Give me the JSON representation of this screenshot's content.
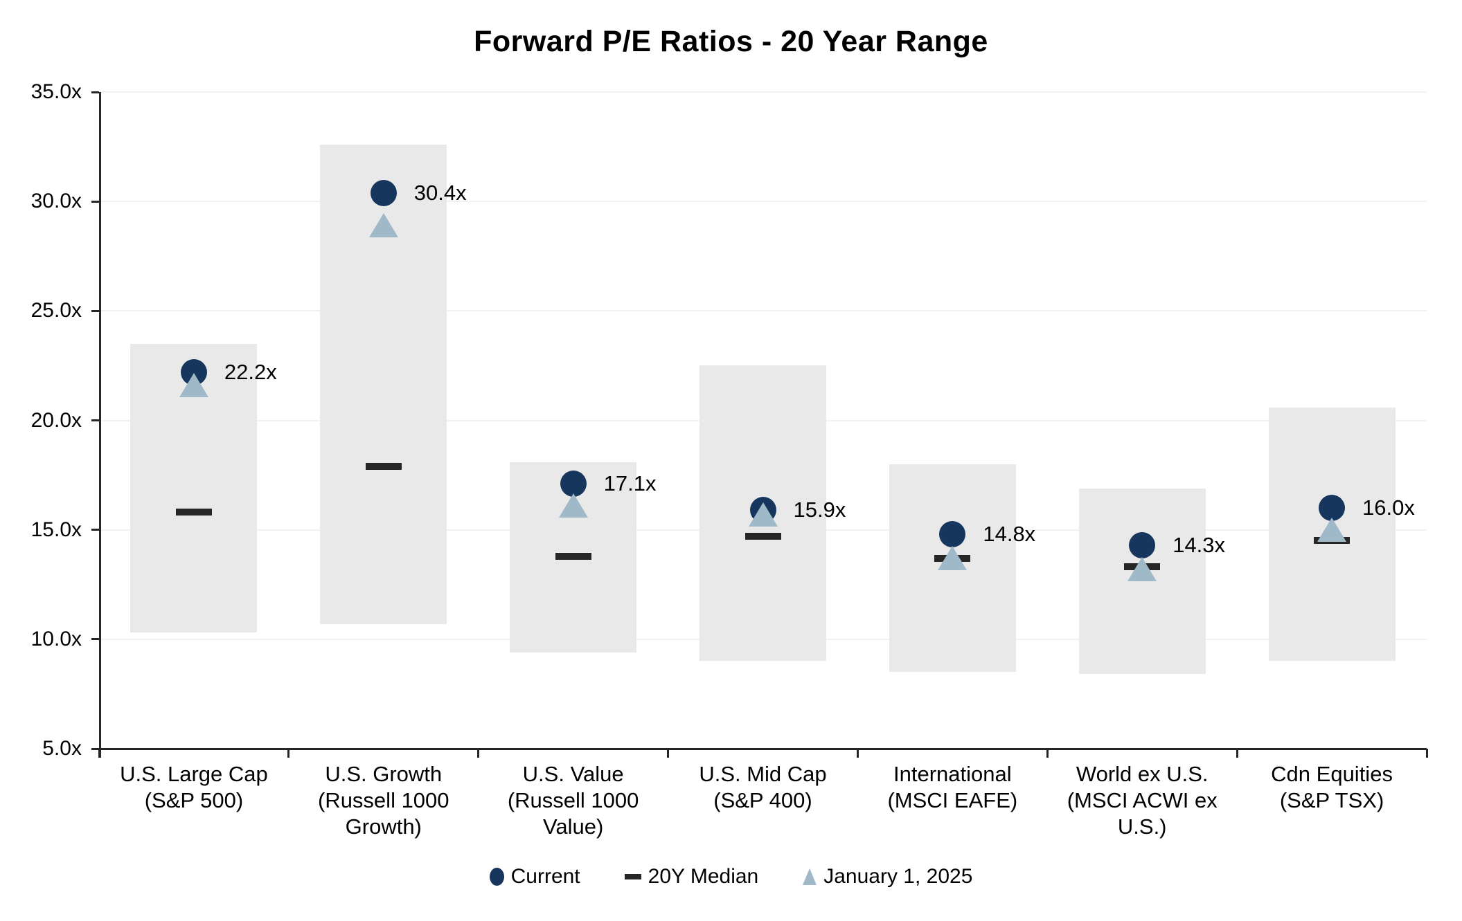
{
  "title": "Forward P/E Ratios - 20 Year Range",
  "colors": {
    "current": "#16365D",
    "jan1": "#9FB9C8",
    "median": "#262626",
    "range_bar": "#E9E9E9",
    "gridline": "#F2F2F2",
    "axis": "#262626",
    "text": "#000000",
    "background": "#FFFFFF"
  },
  "legend": [
    {
      "label": "Current",
      "marker": "circle"
    },
    {
      "label": "20Y Median",
      "marker": "dash"
    },
    {
      "label": "January 1, 2025",
      "marker": "triangle"
    }
  ],
  "chart_data": {
    "type": "bar",
    "subtype": "floating-range-bars-with-point-markers",
    "title": "Forward P/E Ratios - 20 Year Range",
    "xlabel": "",
    "ylabel": "",
    "ylim": [
      5.0,
      35.0
    ],
    "ytick_step": 5.0,
    "yticks": [
      35,
      30,
      25,
      20,
      15,
      10,
      5
    ],
    "ytick_labels": [
      "35.0x",
      "30.0x",
      "25.0x",
      "20.0x",
      "15.0x",
      "10.0x",
      "5.0x"
    ],
    "grid": true,
    "legend_position": "bottom",
    "series_names": [
      "20Y Range",
      "Current",
      "20Y Median",
      "January 1, 2025"
    ],
    "categories": [
      {
        "label_lines": [
          "U.S. Large Cap",
          "(S&P 500)"
        ],
        "range_low": 10.3,
        "range_high": 23.5,
        "median": 15.8,
        "current": 22.2,
        "jan1_2025": 21.6,
        "current_label": "22.2x"
      },
      {
        "label_lines": [
          "U.S. Growth",
          "(Russell 1000",
          "Growth)"
        ],
        "range_low": 10.7,
        "range_high": 32.6,
        "median": 17.9,
        "current": 30.4,
        "jan1_2025": 28.9,
        "current_label": "30.4x"
      },
      {
        "label_lines": [
          "U.S. Value",
          "(Russell 1000",
          "Value)"
        ],
        "range_low": 9.4,
        "range_high": 18.1,
        "median": 13.8,
        "current": 17.1,
        "jan1_2025": 16.1,
        "current_label": "17.1x"
      },
      {
        "label_lines": [
          "U.S. Mid Cap",
          "(S&P 400)"
        ],
        "range_low": 9.0,
        "range_high": 22.5,
        "median": 14.7,
        "current": 15.9,
        "jan1_2025": 15.7,
        "current_label": "15.9x"
      },
      {
        "label_lines": [
          "International",
          "(MSCI EAFE)"
        ],
        "range_low": 8.5,
        "range_high": 18.0,
        "median": 13.7,
        "current": 14.8,
        "jan1_2025": 13.7,
        "current_label": "14.8x"
      },
      {
        "label_lines": [
          "World ex U.S.",
          "(MSCI ACWI ex",
          "U.S.)"
        ],
        "range_low": 8.4,
        "range_high": 16.9,
        "median": 13.3,
        "current": 14.3,
        "jan1_2025": 13.2,
        "current_label": "14.3x"
      },
      {
        "label_lines": [
          "Cdn Equities",
          "(S&P TSX)"
        ],
        "range_low": 9.0,
        "range_high": 20.6,
        "median": 14.5,
        "current": 16.0,
        "jan1_2025": 15.0,
        "current_label": "16.0x"
      }
    ]
  }
}
